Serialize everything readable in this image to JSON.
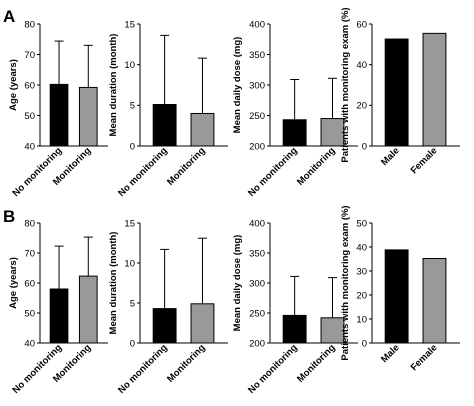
{
  "panels": [
    {
      "letter": "A",
      "charts": [
        {
          "type": "bar",
          "ylabel": "Age (years)",
          "ylim": [
            40,
            80
          ],
          "yticks": [
            40,
            50,
            60,
            70,
            80
          ],
          "categories": [
            "No monitoring",
            "Monitoring"
          ],
          "values": [
            60.2,
            59.2
          ],
          "errors": [
            14.2,
            13.8
          ],
          "colors": [
            "#000000",
            "#999999"
          ]
        },
        {
          "type": "bar",
          "ylabel": "Mean duration (month)",
          "ylim": [
            0,
            15
          ],
          "yticks": [
            0,
            5,
            10,
            15
          ],
          "categories": [
            "No monitoring",
            "Monitoring"
          ],
          "values": [
            5.1,
            4.0
          ],
          "errors": [
            8.5,
            6.8
          ],
          "colors": [
            "#000000",
            "#999999"
          ]
        },
        {
          "type": "bar",
          "ylabel": "Mean daily dose  (mg)",
          "ylim": [
            200,
            400
          ],
          "yticks": [
            200,
            250,
            300,
            350,
            400
          ],
          "categories": [
            "No monitoring",
            "Monitoring"
          ],
          "values": [
            243,
            245
          ],
          "errors": [
            66,
            66
          ],
          "colors": [
            "#000000",
            "#999999"
          ]
        },
        {
          "type": "bar",
          "ylabel": "Patients with monitoring exam (%)",
          "ylim": [
            0,
            60
          ],
          "yticks": [
            0,
            20,
            40,
            60
          ],
          "categories": [
            "Male",
            "Female"
          ],
          "values": [
            52.6,
            55.4
          ],
          "errors": [
            null,
            null
          ],
          "colors": [
            "#000000",
            "#999999"
          ]
        }
      ]
    },
    {
      "letter": "B",
      "charts": [
        {
          "type": "bar",
          "ylabel": "Age (years)",
          "ylim": [
            40,
            80
          ],
          "yticks": [
            40,
            50,
            60,
            70,
            80
          ],
          "categories": [
            "No monitoring",
            "Monitoring"
          ],
          "values": [
            58.0,
            62.3
          ],
          "errors": [
            14.3,
            13.0
          ],
          "colors": [
            "#000000",
            "#999999"
          ]
        },
        {
          "type": "bar",
          "ylabel": "Mean duration (month)",
          "ylim": [
            0,
            15
          ],
          "yticks": [
            0,
            5,
            10,
            15
          ],
          "categories": [
            "No monitoring",
            "Monitoring"
          ],
          "values": [
            4.3,
            4.9
          ],
          "errors": [
            7.4,
            8.2
          ],
          "colors": [
            "#000000",
            "#999999"
          ]
        },
        {
          "type": "bar",
          "ylabel": "Mean daily dose  (mg)",
          "ylim": [
            200,
            400
          ],
          "yticks": [
            200,
            250,
            300,
            350,
            400
          ],
          "categories": [
            "No monitoring",
            "Monitoring"
          ],
          "values": [
            246,
            242
          ],
          "errors": [
            65,
            67
          ],
          "colors": [
            "#000000",
            "#999999"
          ]
        },
        {
          "type": "bar",
          "ylabel": "Patients with monitoring exam (%)",
          "ylim": [
            0,
            50
          ],
          "yticks": [
            0,
            10,
            20,
            30,
            40,
            50
          ],
          "categories": [
            "Male",
            "Female"
          ],
          "values": [
            38.8,
            35.2
          ],
          "errors": [
            null,
            null
          ],
          "colors": [
            "#000000",
            "#999999"
          ]
        }
      ]
    }
  ],
  "chart_data": [
    {
      "type": "bar",
      "panel": "A",
      "ylabel": "Age (years)",
      "categories": [
        "No monitoring",
        "Monitoring"
      ],
      "values": [
        60.2,
        59.2
      ],
      "errors": [
        14.2,
        13.8
      ],
      "ylim": [
        40,
        80
      ]
    },
    {
      "type": "bar",
      "panel": "A",
      "ylabel": "Mean duration (month)",
      "categories": [
        "No monitoring",
        "Monitoring"
      ],
      "values": [
        5.1,
        4.0
      ],
      "errors": [
        8.5,
        6.8
      ],
      "ylim": [
        0,
        15
      ]
    },
    {
      "type": "bar",
      "panel": "A",
      "ylabel": "Mean daily dose  (mg)",
      "categories": [
        "No monitoring",
        "Monitoring"
      ],
      "values": [
        243,
        245
      ],
      "errors": [
        66,
        66
      ],
      "ylim": [
        200,
        400
      ]
    },
    {
      "type": "bar",
      "panel": "A",
      "ylabel": "Patients with monitoring exam (%)",
      "categories": [
        "Male",
        "Female"
      ],
      "values": [
        52.6,
        55.4
      ],
      "ylim": [
        0,
        60
      ]
    },
    {
      "type": "bar",
      "panel": "B",
      "ylabel": "Age (years)",
      "categories": [
        "No monitoring",
        "Monitoring"
      ],
      "values": [
        58.0,
        62.3
      ],
      "errors": [
        14.3,
        13.0
      ],
      "ylim": [
        40,
        80
      ]
    },
    {
      "type": "bar",
      "panel": "B",
      "ylabel": "Mean duration (month)",
      "categories": [
        "No monitoring",
        "Monitoring"
      ],
      "values": [
        4.3,
        4.9
      ],
      "errors": [
        7.4,
        8.2
      ],
      "ylim": [
        0,
        15
      ]
    },
    {
      "type": "bar",
      "panel": "B",
      "ylabel": "Mean daily dose  (mg)",
      "categories": [
        "No monitoring",
        "Monitoring"
      ],
      "values": [
        246,
        242
      ],
      "errors": [
        65,
        67
      ],
      "ylim": [
        200,
        400
      ]
    },
    {
      "type": "bar",
      "panel": "B",
      "ylabel": "Patients with monitoring exam (%)",
      "categories": [
        "Male",
        "Female"
      ],
      "values": [
        38.8,
        35.2
      ],
      "ylim": [
        0,
        50
      ]
    }
  ]
}
